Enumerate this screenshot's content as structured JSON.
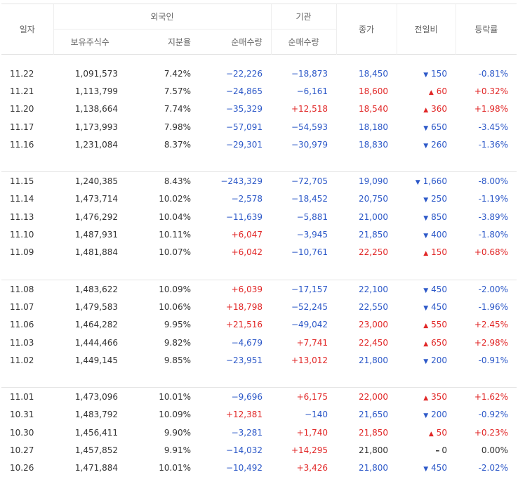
{
  "headers": {
    "date": "일자",
    "foreign": "외국인",
    "institution": "기관",
    "holdings": "보유주식수",
    "share_ratio": "지분율",
    "net_buy": "순매수량",
    "inst_net_buy": "순매수량",
    "close": "종가",
    "change": "전일비",
    "rate": "등락률"
  },
  "colors": {
    "up": "#e12626",
    "down": "#2c58c8"
  },
  "groups": [
    [
      {
        "date": "11.22",
        "holdings": "1,091,573",
        "ratio": "7.42%",
        "foreign": "−22,226",
        "fdir": "down",
        "inst": "−18,873",
        "idir": "down",
        "close": "18,450",
        "cdir": "down",
        "chg": "150",
        "chgdir": "down",
        "rate": "-0.81%"
      },
      {
        "date": "11.21",
        "holdings": "1,113,799",
        "ratio": "7.57%",
        "foreign": "−24,865",
        "fdir": "down",
        "inst": "−6,161",
        "idir": "down",
        "close": "18,600",
        "cdir": "up",
        "chg": "60",
        "chgdir": "up",
        "rate": "+0.32%"
      },
      {
        "date": "11.20",
        "holdings": "1,138,664",
        "ratio": "7.74%",
        "foreign": "−35,329",
        "fdir": "down",
        "inst": "+12,518",
        "idir": "up",
        "close": "18,540",
        "cdir": "up",
        "chg": "360",
        "chgdir": "up",
        "rate": "+1.98%"
      },
      {
        "date": "11.17",
        "holdings": "1,173,993",
        "ratio": "7.98%",
        "foreign": "−57,091",
        "fdir": "down",
        "inst": "−54,593",
        "idir": "down",
        "close": "18,180",
        "cdir": "down",
        "chg": "650",
        "chgdir": "down",
        "rate": "-3.45%"
      },
      {
        "date": "11.16",
        "holdings": "1,231,084",
        "ratio": "8.37%",
        "foreign": "−29,301",
        "fdir": "down",
        "inst": "−30,979",
        "idir": "down",
        "close": "18,830",
        "cdir": "down",
        "chg": "260",
        "chgdir": "down",
        "rate": "-1.36%"
      }
    ],
    [
      {
        "date": "11.15",
        "holdings": "1,240,385",
        "ratio": "8.43%",
        "foreign": "−243,329",
        "fdir": "down",
        "inst": "−72,705",
        "idir": "down",
        "close": "19,090",
        "cdir": "down",
        "chg": "1,660",
        "chgdir": "down",
        "rate": "-8.00%"
      },
      {
        "date": "11.14",
        "holdings": "1,473,714",
        "ratio": "10.02%",
        "foreign": "−2,578",
        "fdir": "down",
        "inst": "−18,452",
        "idir": "down",
        "close": "20,750",
        "cdir": "down",
        "chg": "250",
        "chgdir": "down",
        "rate": "-1.19%"
      },
      {
        "date": "11.13",
        "holdings": "1,476,292",
        "ratio": "10.04%",
        "foreign": "−11,639",
        "fdir": "down",
        "inst": "−5,881",
        "idir": "down",
        "close": "21,000",
        "cdir": "down",
        "chg": "850",
        "chgdir": "down",
        "rate": "-3.89%"
      },
      {
        "date": "11.10",
        "holdings": "1,487,931",
        "ratio": "10.11%",
        "foreign": "+6,047",
        "fdir": "up",
        "inst": "−3,945",
        "idir": "down",
        "close": "21,850",
        "cdir": "down",
        "chg": "400",
        "chgdir": "down",
        "rate": "-1.80%"
      },
      {
        "date": "11.09",
        "holdings": "1,481,884",
        "ratio": "10.07%",
        "foreign": "+6,042",
        "fdir": "up",
        "inst": "−10,761",
        "idir": "down",
        "close": "22,250",
        "cdir": "up",
        "chg": "150",
        "chgdir": "up",
        "rate": "+0.68%"
      }
    ],
    [
      {
        "date": "11.08",
        "holdings": "1,483,622",
        "ratio": "10.09%",
        "foreign": "+6,039",
        "fdir": "up",
        "inst": "−17,157",
        "idir": "down",
        "close": "22,100",
        "cdir": "down",
        "chg": "450",
        "chgdir": "down",
        "rate": "-2.00%"
      },
      {
        "date": "11.07",
        "holdings": "1,479,583",
        "ratio": "10.06%",
        "foreign": "+18,798",
        "fdir": "up",
        "inst": "−52,245",
        "idir": "down",
        "close": "22,550",
        "cdir": "down",
        "chg": "450",
        "chgdir": "down",
        "rate": "-1.96%"
      },
      {
        "date": "11.06",
        "holdings": "1,464,282",
        "ratio": "9.95%",
        "foreign": "+21,516",
        "fdir": "up",
        "inst": "−49,042",
        "idir": "down",
        "close": "23,000",
        "cdir": "up",
        "chg": "550",
        "chgdir": "up",
        "rate": "+2.45%"
      },
      {
        "date": "11.03",
        "holdings": "1,444,466",
        "ratio": "9.82%",
        "foreign": "−4,679",
        "fdir": "down",
        "inst": "+7,741",
        "idir": "up",
        "close": "22,450",
        "cdir": "up",
        "chg": "650",
        "chgdir": "up",
        "rate": "+2.98%"
      },
      {
        "date": "11.02",
        "holdings": "1,449,145",
        "ratio": "9.85%",
        "foreign": "−23,951",
        "fdir": "down",
        "inst": "+13,012",
        "idir": "up",
        "close": "21,800",
        "cdir": "down",
        "chg": "200",
        "chgdir": "down",
        "rate": "-0.91%"
      }
    ],
    [
      {
        "date": "11.01",
        "holdings": "1,473,096",
        "ratio": "10.01%",
        "foreign": "−9,696",
        "fdir": "down",
        "inst": "+6,175",
        "idir": "up",
        "close": "22,000",
        "cdir": "up",
        "chg": "350",
        "chgdir": "up",
        "rate": "+1.62%"
      },
      {
        "date": "10.31",
        "holdings": "1,483,792",
        "ratio": "10.09%",
        "foreign": "+12,381",
        "fdir": "up",
        "inst": "−140",
        "idir": "down",
        "close": "21,650",
        "cdir": "down",
        "chg": "200",
        "chgdir": "down",
        "rate": "-0.92%"
      },
      {
        "date": "10.30",
        "holdings": "1,456,411",
        "ratio": "9.90%",
        "foreign": "−3,281",
        "fdir": "down",
        "inst": "+1,740",
        "idir": "up",
        "close": "21,850",
        "cdir": "up",
        "chg": "50",
        "chgdir": "up",
        "rate": "+0.23%"
      },
      {
        "date": "10.27",
        "holdings": "1,457,852",
        "ratio": "9.91%",
        "foreign": "−14,032",
        "fdir": "down",
        "inst": "+14,295",
        "idir": "up",
        "close": "21,800",
        "cdir": "zero",
        "chg": "0",
        "chgdir": "zero",
        "rate": "0.00%"
      },
      {
        "date": "10.26",
        "holdings": "1,471,884",
        "ratio": "10.01%",
        "foreign": "−10,492",
        "fdir": "down",
        "inst": "+3,426",
        "idir": "up",
        "close": "21,800",
        "cdir": "down",
        "chg": "450",
        "chgdir": "down",
        "rate": "-2.02%"
      }
    ]
  ]
}
